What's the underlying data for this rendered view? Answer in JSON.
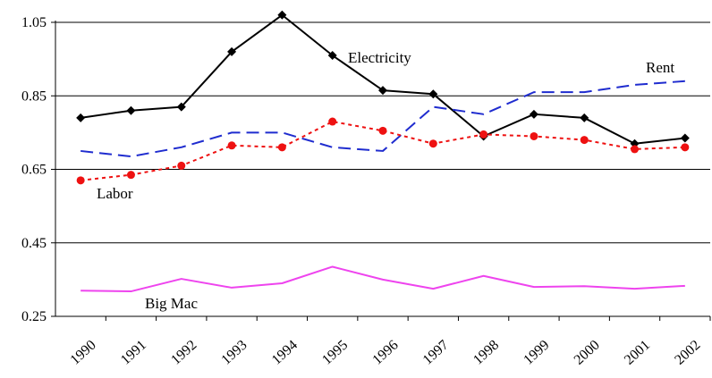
{
  "chart_data": {
    "type": "line",
    "title": "",
    "xlabel": "",
    "ylabel": "",
    "x": [
      "1990",
      "1991",
      "1992",
      "1993",
      "1994",
      "1995",
      "1996",
      "1997",
      "1998",
      "1999",
      "2000",
      "2001",
      "2002"
    ],
    "ylim": [
      0.25,
      1.1
    ],
    "yticks": [
      "0.25",
      "0.45",
      "0.65",
      "0.85",
      "1.05"
    ],
    "ytick_values": [
      0.25,
      0.45,
      0.65,
      0.85,
      1.05
    ],
    "grid": "horizontal",
    "legend": "none",
    "series": [
      {
        "name": "Electricity",
        "color": "#000000",
        "line_style": "solid",
        "marker": "diamond",
        "values": [
          0.79,
          0.81,
          0.82,
          0.97,
          1.07,
          0.96,
          0.865,
          0.855,
          0.74,
          0.8,
          0.79,
          0.72,
          0.735
        ]
      },
      {
        "name": "Rent",
        "color": "#1f2ccf",
        "line_style": "dashed",
        "marker": "none",
        "values": [
          0.7,
          0.685,
          0.71,
          0.75,
          0.75,
          0.71,
          0.7,
          0.82,
          0.8,
          0.86,
          0.86,
          0.88,
          0.89
        ]
      },
      {
        "name": "Labor",
        "color": "#ee1111",
        "line_style": "dotted",
        "marker": "circle",
        "values": [
          0.62,
          0.635,
          0.66,
          0.715,
          0.71,
          0.78,
          0.755,
          0.72,
          0.745,
          0.74,
          0.73,
          0.705,
          0.71
        ]
      },
      {
        "name": "Big Mac",
        "color": "#ee44ee",
        "line_style": "solid",
        "marker": "none",
        "values": [
          0.32,
          0.318,
          0.352,
          0.328,
          0.34,
          0.385,
          0.35,
          0.325,
          0.36,
          0.33,
          0.332,
          0.325,
          0.333
        ]
      }
    ]
  }
}
